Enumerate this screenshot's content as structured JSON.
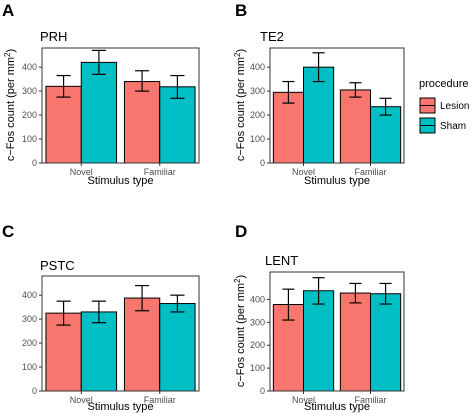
{
  "legend": {
    "title": "procedure",
    "items": [
      {
        "label": "Lesion",
        "color": "#F8766D"
      },
      {
        "label": "Sham",
        "color": "#00BFC4"
      }
    ]
  },
  "axis_text": {
    "ylabel_prefix": "c−Fos count (per mm",
    "ylabel_sup": "2",
    "ylabel_suffix": ")",
    "xlabel": "Stimulus type"
  },
  "chart_data": [
    {
      "type": "bar",
      "panel": "A",
      "title": "PRH",
      "categories": [
        "Novel",
        "Familiar"
      ],
      "xlabel": "Stimulus type",
      "ylabel": "c−Fos count (per mm2)",
      "ylim": [
        0,
        480
      ],
      "yticks": [
        0,
        100,
        200,
        300,
        400
      ],
      "series": [
        {
          "name": "Lesion",
          "values": [
            320,
            340
          ],
          "err_low": [
            275,
            300
          ],
          "err_high": [
            365,
            385
          ]
        },
        {
          "name": "Sham",
          "values": [
            420,
            318
          ],
          "err_low": [
            370,
            270
          ],
          "err_high": [
            470,
            365
          ]
        }
      ]
    },
    {
      "type": "bar",
      "panel": "B",
      "title": "TE2",
      "categories": [
        "Novel",
        "Familiar"
      ],
      "xlabel": "Stimulus type",
      "ylabel": "c−Fos count (per mm2)",
      "ylim": [
        0,
        480
      ],
      "yticks": [
        0,
        100,
        200,
        300,
        400
      ],
      "series": [
        {
          "name": "Lesion",
          "values": [
            295,
            305
          ],
          "err_low": [
            250,
            275
          ],
          "err_high": [
            340,
            335
          ]
        },
        {
          "name": "Sham",
          "values": [
            400,
            235
          ],
          "err_low": [
            340,
            200
          ],
          "err_high": [
            460,
            270
          ]
        }
      ]
    },
    {
      "type": "bar",
      "panel": "C",
      "title": "PSTC",
      "categories": [
        "Novel",
        "Familiar"
      ],
      "xlabel": "Stimulus type",
      "ylabel": "",
      "ylim": [
        0,
        480
      ],
      "yticks": [
        0,
        100,
        200,
        300,
        400
      ],
      "series": [
        {
          "name": "Lesion",
          "values": [
            325,
            388
          ],
          "err_low": [
            275,
            335
          ],
          "err_high": [
            375,
            440
          ]
        },
        {
          "name": "Sham",
          "values": [
            330,
            365
          ],
          "err_low": [
            285,
            330
          ],
          "err_high": [
            375,
            400
          ]
        }
      ]
    },
    {
      "type": "bar",
      "panel": "D",
      "title": "LENT",
      "categories": [
        "Novel",
        "Familiar"
      ],
      "xlabel": "Stimulus type",
      "ylabel": "c−Fos count (per mm2)",
      "ylim": [
        0,
        520
      ],
      "yticks": [
        0,
        100,
        200,
        300,
        400
      ],
      "series": [
        {
          "name": "Lesion",
          "values": [
            378,
            428
          ],
          "err_low": [
            310,
            385
          ],
          "err_high": [
            445,
            470
          ]
        },
        {
          "name": "Sham",
          "values": [
            438,
            425
          ],
          "err_low": [
            380,
            380
          ],
          "err_high": [
            495,
            470
          ]
        }
      ]
    }
  ]
}
